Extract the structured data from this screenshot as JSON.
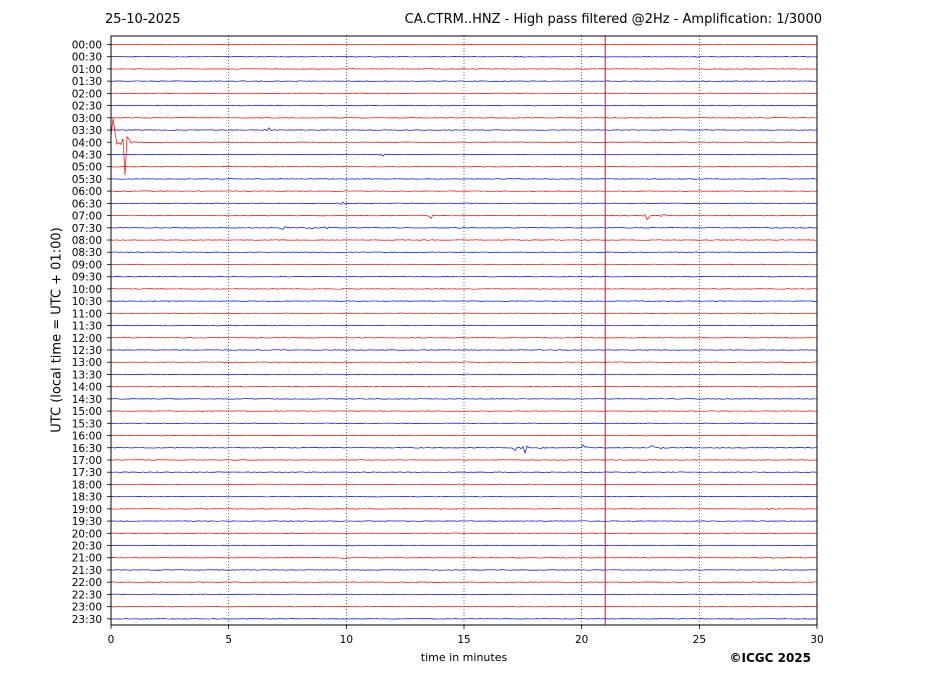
{
  "header": {
    "date": "25-10-2025",
    "title": "CA.CTRM..HNZ - High pass filtered @2Hz - Amplification: 1/3000"
  },
  "footer": {
    "credit": "©ICGC 2025"
  },
  "colors": {
    "trace_a": "#ff0000",
    "trace_b": "#0000ff",
    "marker": "#ff0000",
    "grid": "#000000"
  },
  "chart_data": {
    "type": "line",
    "title": "CA.CTRM..HNZ - High pass filtered @2Hz - Amplification: 1/3000",
    "xlabel": "time in minutes",
    "ylabel": "UTC (local time = UTC + 01:00)",
    "xlim": [
      0,
      30
    ],
    "x_ticks": [
      "0",
      "5",
      "10",
      "15",
      "20",
      "25",
      "30"
    ],
    "grid": "vertical dotted lines at 5-minute intervals",
    "trace_start_times": [
      "00:00",
      "00:30",
      "01:00",
      "01:30",
      "02:00",
      "02:30",
      "03:00",
      "03:30",
      "04:00",
      "04:30",
      "05:00",
      "05:30",
      "06:00",
      "06:30",
      "07:00",
      "07:30",
      "08:00",
      "08:30",
      "09:00",
      "09:30",
      "10:00",
      "10:30",
      "11:00",
      "11:30",
      "12:00",
      "12:30",
      "13:00",
      "13:30",
      "14:00",
      "14:30",
      "15:00",
      "15:30",
      "16:00",
      "16:30",
      "17:00",
      "17:30",
      "18:00",
      "18:30",
      "19:00",
      "19:30",
      "20:00",
      "20:30",
      "21:00",
      "21:30",
      "22:00",
      "22:30",
      "23:00",
      "23:30"
    ],
    "trace_colors_alternating": [
      "red",
      "blue"
    ],
    "vertical_marker_minute": 21.0,
    "events": [
      {
        "row": "03:30",
        "minute": 6.7,
        "amplitude": 0.35
      },
      {
        "row": "04:00",
        "minute": 0.6,
        "amplitude": 3.2
      },
      {
        "row": "04:00",
        "minute": 0.1,
        "amplitude": 2.5
      },
      {
        "row": "04:30",
        "minute": 11.5,
        "amplitude": 0.3
      },
      {
        "row": "06:30",
        "minute": 9.8,
        "amplitude": 0.3
      },
      {
        "row": "07:00",
        "minute": 13.6,
        "amplitude": 0.3
      },
      {
        "row": "07:00",
        "minute": 22.8,
        "amplitude": 0.45
      },
      {
        "row": "07:00",
        "minute": 23.4,
        "amplitude": 0.35
      },
      {
        "row": "07:30",
        "minute": 7.3,
        "amplitude": 0.5
      },
      {
        "row": "07:30",
        "minute": 8.5,
        "amplitude": 0.6
      },
      {
        "row": "07:30",
        "minute": 9.2,
        "amplitude": 0.4
      },
      {
        "row": "07:30",
        "minute": 14.8,
        "amplitude": 0.3
      },
      {
        "row": "16:30",
        "minute": 17.2,
        "amplitude": 0.45
      },
      {
        "row": "16:30",
        "minute": 17.6,
        "amplitude": 0.5
      },
      {
        "row": "16:30",
        "minute": 18.3,
        "amplitude": 0.35
      },
      {
        "row": "16:30",
        "minute": 20.1,
        "amplitude": 0.45
      },
      {
        "row": "16:30",
        "minute": 23.0,
        "amplitude": 0.35
      },
      {
        "row": "16:30",
        "minute": 23.4,
        "amplitude": 0.3
      },
      {
        "row": "19:00",
        "minute": 28.0,
        "amplitude": 0.3
      },
      {
        "row": "21:00",
        "minute": 28.0,
        "amplitude": 0.3
      },
      {
        "row": "21:00",
        "minute": 9.9,
        "amplitude": 0.25
      }
    ]
  }
}
